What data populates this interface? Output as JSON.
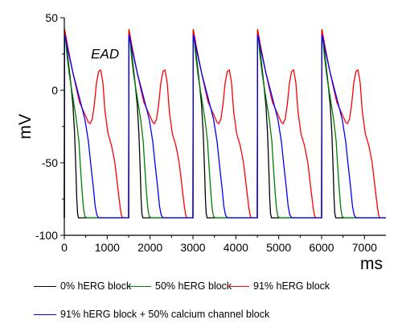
{
  "chart_data": {
    "type": "line",
    "xlabel": "ms",
    "ylabel": "mV",
    "xlim": [
      0,
      7500
    ],
    "ylim": [
      -100,
      50
    ],
    "xticks": [
      0,
      1000,
      2000,
      3000,
      4000,
      5000,
      6000,
      7000
    ],
    "yticks": [
      -100,
      -50,
      0,
      50
    ],
    "xtick_labels": [
      "0",
      "1000",
      "2000",
      "3000",
      "4000",
      "5000",
      "6000",
      "7000"
    ],
    "ytick_labels": [
      "-100",
      "-50",
      "0",
      "50"
    ],
    "grid": false,
    "legend_position": "bottom",
    "annotations": [
      {
        "text": "EAD",
        "x": 950,
        "y": 22
      }
    ],
    "series": [
      {
        "name": "0% hERG block",
        "color": "#000000",
        "x": [
          0,
          5,
          20,
          60,
          100,
          150,
          200,
          240,
          270,
          290,
          310,
          330,
          360,
          420,
          1500
        ],
        "y": [
          -88,
          40,
          38,
          28,
          18,
          5,
          -10,
          -30,
          -55,
          -75,
          -85,
          -88,
          -88,
          -88,
          -88
        ]
      },
      {
        "name": "50% hERG block",
        "color": "#008000",
        "x": [
          0,
          5,
          20,
          60,
          120,
          200,
          280,
          340,
          380,
          420,
          450,
          480,
          520,
          600,
          1500
        ],
        "y": [
          -88,
          41,
          38,
          25,
          10,
          -5,
          -20,
          -35,
          -55,
          -72,
          -82,
          -87,
          -88,
          -88,
          -88
        ]
      },
      {
        "name": "91% hERG block",
        "color": "#ff0000",
        "x": [
          0,
          5,
          20,
          80,
          200,
          350,
          500,
          560,
          600,
          650,
          700,
          750,
          800,
          850,
          900,
          950,
          1020,
          1100,
          1180,
          1250,
          1300,
          1330,
          1360,
          1400,
          1500
        ],
        "y": [
          -88,
          42,
          40,
          30,
          12,
          -8,
          -18,
          -22,
          -23,
          -20,
          -10,
          5,
          13,
          14,
          5,
          -15,
          -30,
          -38,
          -50,
          -68,
          -80,
          -86,
          -88,
          -88,
          -88
        ]
      },
      {
        "name": "91% hERG block + 50% calcium channel block",
        "color": "#0000ff",
        "x": [
          0,
          5,
          20,
          80,
          200,
          350,
          480,
          560,
          620,
          680,
          720,
          760,
          800,
          850,
          1500
        ],
        "y": [
          -88,
          38,
          37,
          28,
          12,
          -5,
          -20,
          -35,
          -52,
          -68,
          -80,
          -86,
          -88,
          -88,
          -88
        ]
      }
    ],
    "beats_start_ms": [
      0,
      1500,
      3000,
      4500,
      6000
    ],
    "beats_end_ms": 7500
  },
  "legend": {
    "items": [
      {
        "label": "0% hERG block",
        "color": "#000000"
      },
      {
        "label": "50% hERG block",
        "color": "#008000"
      },
      {
        "label": "91% hERG block",
        "color": "#ff0000"
      },
      {
        "label": "91% hERG block + 50% calcium channel block",
        "color": "#0000ff"
      }
    ]
  }
}
